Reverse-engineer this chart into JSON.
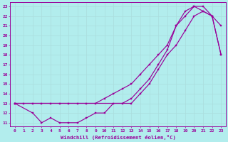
{
  "xlabel": "Windchill (Refroidissement éolien,°C)",
  "xlim_min": -0.5,
  "xlim_max": 23.5,
  "ylim_min": 10.6,
  "ylim_max": 23.4,
  "xticks": [
    0,
    1,
    2,
    3,
    4,
    5,
    6,
    7,
    8,
    9,
    10,
    11,
    12,
    13,
    14,
    15,
    16,
    17,
    18,
    19,
    20,
    21,
    22,
    23
  ],
  "yticks": [
    11,
    12,
    13,
    14,
    15,
    16,
    17,
    18,
    19,
    20,
    21,
    22,
    23
  ],
  "bg_color": "#b2eded",
  "grid_color": "#c8e8e8",
  "line_color": "#990099",
  "line1_x": [
    0,
    1,
    2,
    3,
    4,
    5,
    6,
    7,
    8,
    9,
    10,
    11,
    12,
    13,
    14,
    15,
    16,
    17,
    18,
    19,
    20,
    21,
    22,
    23
  ],
  "line1_y": [
    13,
    13,
    13,
    13,
    13,
    13,
    13,
    13,
    13,
    13,
    13.5,
    14,
    14.5,
    15,
    16,
    17,
    18,
    19,
    21,
    22,
    23,
    23,
    22,
    18
  ],
  "line2_x": [
    0,
    2,
    3,
    4,
    5,
    6,
    7,
    8,
    9,
    10,
    11,
    12,
    13,
    14,
    15,
    16,
    17,
    18,
    19,
    20,
    21,
    22,
    23
  ],
  "line2_y": [
    13,
    12,
    11,
    11.5,
    11,
    11,
    11,
    11.5,
    12,
    12,
    13,
    13,
    13.5,
    14.5,
    15.5,
    17,
    18.5,
    21,
    22.5,
    23,
    22.5,
    22,
    21
  ],
  "line3_x": [
    0,
    13,
    14,
    15,
    16,
    17,
    18,
    19,
    20,
    21,
    22,
    23
  ],
  "line3_y": [
    13,
    13,
    14,
    15,
    16.5,
    18,
    19,
    20.5,
    22,
    22.5,
    22,
    18
  ]
}
